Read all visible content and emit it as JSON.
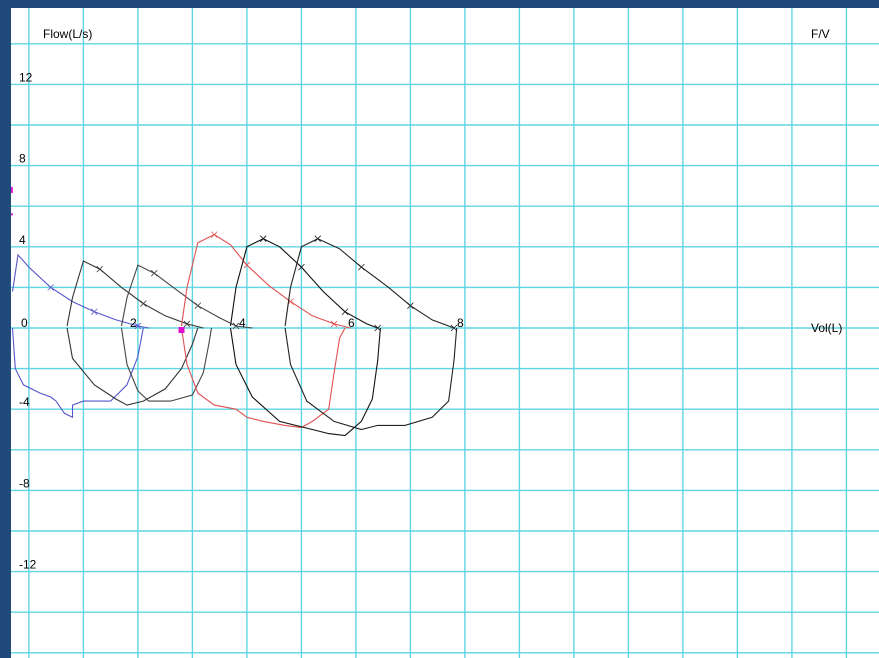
{
  "chart_data": {
    "type": "line",
    "title": "F/V",
    "ylabel": "Flow(L/s)",
    "xlabel": "Vol(L)",
    "xlim": [
      0,
      8
    ],
    "ylim": [
      -12,
      12
    ],
    "x_ticks": [
      0,
      2,
      4,
      6,
      8
    ],
    "y_ticks": [
      12,
      8,
      4,
      0,
      -4,
      -8,
      -12
    ],
    "x_tick_labels": [
      "0",
      "2",
      "4",
      "6",
      "8"
    ],
    "y_tick_labels": [
      "12",
      "8",
      "4",
      "0",
      "-4",
      "-8",
      "-12"
    ],
    "grid": true,
    "colors": {
      "grid": "#5fd6e2",
      "frame": "#1f4a7a",
      "marker": "#e010d0"
    },
    "markers": [
      {
        "x": -0.15,
        "y": 6.8,
        "shape": "square"
      },
      {
        "x": -0.15,
        "y": 5.6,
        "shape": "dash"
      },
      {
        "x": 3.0,
        "y": -0.1,
        "shape": "square"
      }
    ],
    "series": [
      {
        "color": "#5555cc",
        "expiratory": [
          [
            -0.1,
            1.8
          ],
          [
            0,
            3.6
          ],
          [
            0.2,
            3.0
          ],
          [
            0.6,
            2.0
          ],
          [
            1.0,
            1.3
          ],
          [
            1.4,
            0.8
          ],
          [
            1.8,
            0.4
          ],
          [
            2.2,
            0.1
          ],
          [
            2.4,
            0
          ]
        ],
        "inspiratory": [
          [
            -0.1,
            0
          ],
          [
            -0.05,
            -2.0
          ],
          [
            0.1,
            -2.8
          ],
          [
            0.4,
            -3.2
          ],
          [
            0.6,
            -3.4
          ],
          [
            0.7,
            -3.6
          ],
          [
            0.85,
            -4.2
          ],
          [
            1.0,
            -4.4
          ],
          [
            1.0,
            -3.8
          ],
          [
            1.2,
            -3.6
          ],
          [
            1.7,
            -3.6
          ],
          [
            2.0,
            -2.8
          ],
          [
            2.2,
            -1.4
          ],
          [
            2.3,
            0
          ]
        ]
      },
      {
        "color": "#333333",
        "expiratory": [
          [
            0.9,
            0.1
          ],
          [
            1.0,
            1.5
          ],
          [
            1.2,
            3.3
          ],
          [
            1.5,
            2.9
          ],
          [
            1.9,
            2.0
          ],
          [
            2.3,
            1.2
          ],
          [
            2.7,
            0.6
          ],
          [
            3.1,
            0.2
          ],
          [
            3.4,
            0
          ]
        ],
        "inspiratory": [
          [
            0.9,
            0
          ],
          [
            1.0,
            -1.5
          ],
          [
            1.4,
            -2.8
          ],
          [
            1.8,
            -3.5
          ],
          [
            2.0,
            -3.8
          ],
          [
            2.3,
            -3.6
          ],
          [
            2.7,
            -3.0
          ],
          [
            3.0,
            -2.0
          ],
          [
            3.2,
            -0.8
          ],
          [
            3.3,
            0
          ]
        ]
      },
      {
        "color": "#444444",
        "expiratory": [
          [
            1.9,
            0.1
          ],
          [
            2.0,
            1.5
          ],
          [
            2.2,
            3.1
          ],
          [
            2.5,
            2.7
          ],
          [
            2.9,
            1.9
          ],
          [
            3.3,
            1.1
          ],
          [
            3.7,
            0.5
          ],
          [
            4.0,
            0.1
          ],
          [
            4.3,
            0
          ]
        ],
        "inspiratory": [
          [
            1.9,
            0
          ],
          [
            2.0,
            -1.8
          ],
          [
            2.2,
            -3.1
          ],
          [
            2.4,
            -3.6
          ],
          [
            2.8,
            -3.6
          ],
          [
            3.2,
            -3.3
          ],
          [
            3.4,
            -2.2
          ],
          [
            3.5,
            -0.8
          ],
          [
            3.55,
            0
          ]
        ]
      },
      {
        "color": "#e05050",
        "expiratory": [
          [
            3.0,
            0.1
          ],
          [
            3.1,
            2.0
          ],
          [
            3.3,
            4.2
          ],
          [
            3.6,
            4.6
          ],
          [
            3.9,
            4.1
          ],
          [
            4.2,
            3.1
          ],
          [
            4.6,
            2.1
          ],
          [
            5.0,
            1.3
          ],
          [
            5.4,
            0.6
          ],
          [
            5.8,
            0.2
          ],
          [
            6.1,
            0
          ]
        ],
        "inspiratory": [
          [
            3.0,
            0
          ],
          [
            3.1,
            -1.8
          ],
          [
            3.3,
            -3.2
          ],
          [
            3.6,
            -3.8
          ],
          [
            4.0,
            -4.0
          ],
          [
            4.2,
            -4.4
          ],
          [
            4.5,
            -4.6
          ],
          [
            4.9,
            -4.8
          ],
          [
            5.2,
            -4.9
          ],
          [
            5.4,
            -4.6
          ],
          [
            5.7,
            -4.0
          ],
          [
            5.8,
            -2.2
          ],
          [
            5.9,
            -0.5
          ],
          [
            6.0,
            0
          ]
        ]
      },
      {
        "color": "#111111",
        "expiratory": [
          [
            3.9,
            0.1
          ],
          [
            4.0,
            2.0
          ],
          [
            4.2,
            4.0
          ],
          [
            4.5,
            4.4
          ],
          [
            4.8,
            4.0
          ],
          [
            5.2,
            3.0
          ],
          [
            5.6,
            1.8
          ],
          [
            6.0,
            0.8
          ],
          [
            6.4,
            0.2
          ],
          [
            6.6,
            0
          ]
        ],
        "inspiratory": [
          [
            3.9,
            0
          ],
          [
            4.0,
            -1.8
          ],
          [
            4.3,
            -3.4
          ],
          [
            4.8,
            -4.6
          ],
          [
            5.4,
            -5.0
          ],
          [
            5.7,
            -5.2
          ],
          [
            6.0,
            -5.3
          ],
          [
            6.3,
            -4.6
          ],
          [
            6.5,
            -3.5
          ],
          [
            6.6,
            -1.6
          ],
          [
            6.65,
            0
          ]
        ]
      },
      {
        "color": "#222222",
        "expiratory": [
          [
            4.9,
            0.1
          ],
          [
            5.0,
            2.0
          ],
          [
            5.2,
            4.0
          ],
          [
            5.5,
            4.4
          ],
          [
            5.9,
            3.9
          ],
          [
            6.3,
            3.0
          ],
          [
            6.8,
            2.0
          ],
          [
            7.2,
            1.1
          ],
          [
            7.6,
            0.4
          ],
          [
            8.0,
            0
          ]
        ],
        "inspiratory": [
          [
            4.9,
            0
          ],
          [
            5.0,
            -1.8
          ],
          [
            5.3,
            -3.6
          ],
          [
            5.8,
            -4.6
          ],
          [
            6.3,
            -5.0
          ],
          [
            6.6,
            -4.8
          ],
          [
            7.1,
            -4.8
          ],
          [
            7.6,
            -4.4
          ],
          [
            7.9,
            -3.6
          ],
          [
            8.0,
            -1.6
          ],
          [
            8.05,
            0
          ]
        ]
      }
    ]
  }
}
